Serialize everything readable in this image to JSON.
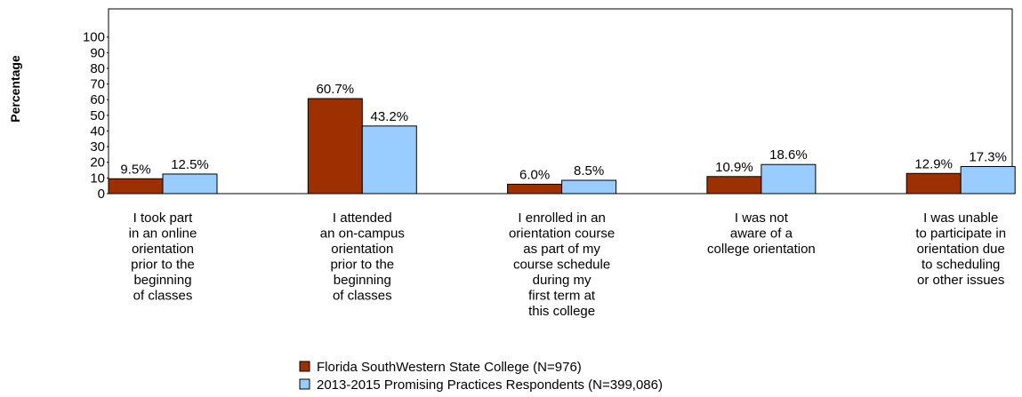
{
  "chart_data": {
    "type": "bar",
    "y_label": "Percentage",
    "categories": [
      "I took part\nin an online\norientation\nprior to the\nbeginning\nof classes",
      "I attended\nan on-campus\norientation\nprior to the\nbeginning\nof classes",
      "I enrolled in an\norientation course\nas part of my\ncourse schedule\nduring my\nfirst term at\nthis college",
      "I was not\naware of a\ncollege orientation",
      "I was unable\nto participate in\norientation due\nto scheduling\nor other issues"
    ],
    "series": [
      {
        "name": "Florida SouthWestern State College (N=976)",
        "color": "#9c3000",
        "values": [
          9.5,
          60.7,
          6.0,
          10.9,
          12.9
        ],
        "value_labels": [
          "9.5%",
          "60.7%",
          "6.0%",
          "10.9%",
          "12.9%"
        ]
      },
      {
        "name": "2013-2015 Promising Practices Respondents (N=399,086)",
        "color": "#99ccff",
        "values": [
          12.5,
          43.2,
          8.5,
          18.6,
          17.3
        ],
        "value_labels": [
          "12.5%",
          "43.2%",
          "8.5%",
          "18.6%",
          "17.3%"
        ]
      }
    ],
    "ylim": [
      0,
      118
    ],
    "yticks": [
      0,
      10,
      20,
      30,
      40,
      50,
      60,
      70,
      80,
      90,
      100
    ]
  }
}
